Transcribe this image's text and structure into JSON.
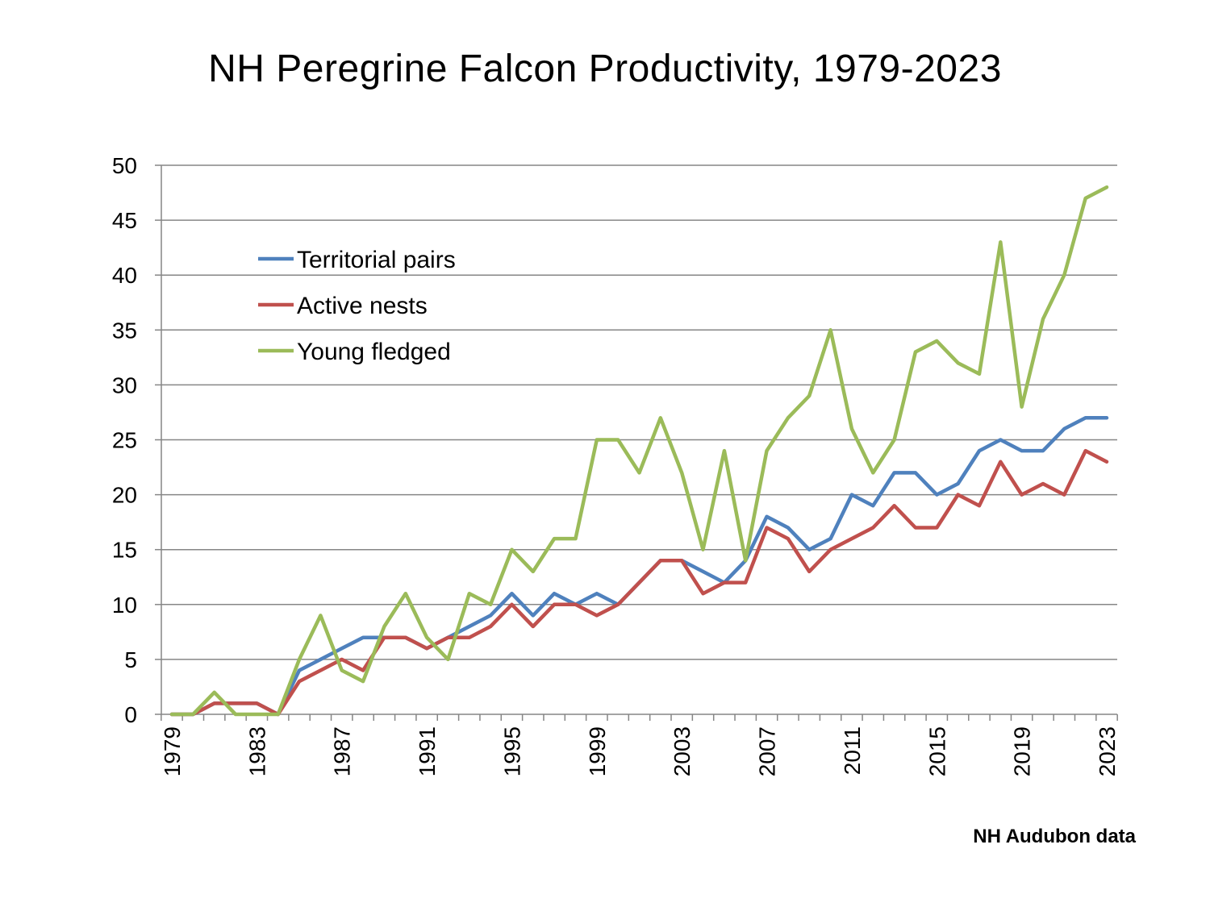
{
  "chart_data": {
    "type": "line",
    "title": "NH Peregrine Falcon Productivity, 1979-2023",
    "source_note": "NH Audubon data",
    "xlabel": "",
    "ylabel": "",
    "ylim": [
      0,
      50
    ],
    "yticks": [
      0,
      5,
      10,
      15,
      20,
      25,
      30,
      35,
      40,
      45,
      50
    ],
    "xtick_labels": [
      "1979",
      "1983",
      "1987",
      "1991",
      "1995",
      "1999",
      "2003",
      "2007",
      "2011",
      "2015",
      "2019",
      "2023"
    ],
    "grid": true,
    "legend_position": "upper-left",
    "x": [
      1979,
      1980,
      1981,
      1982,
      1983,
      1984,
      1985,
      1986,
      1987,
      1988,
      1989,
      1990,
      1991,
      1992,
      1993,
      1994,
      1995,
      1996,
      1997,
      1998,
      1999,
      2000,
      2001,
      2002,
      2003,
      2004,
      2005,
      2006,
      2007,
      2008,
      2009,
      2010,
      2011,
      2012,
      2013,
      2014,
      2015,
      2016,
      2017,
      2018,
      2019,
      2020,
      2021,
      2022,
      2023
    ],
    "series": [
      {
        "name": "Territorial pairs",
        "color": "#4F81BD",
        "values": [
          0,
          0,
          1,
          1,
          1,
          0,
          4,
          5,
          6,
          7,
          7,
          7,
          6,
          7,
          8,
          9,
          11,
          9,
          11,
          10,
          11,
          10,
          12,
          14,
          14,
          13,
          12,
          14,
          18,
          17,
          15,
          16,
          20,
          19,
          22,
          22,
          20,
          21,
          24,
          25,
          24,
          24,
          26,
          27,
          27
        ]
      },
      {
        "name": "Active nests",
        "color": "#C0504D",
        "values": [
          0,
          0,
          1,
          1,
          1,
          0,
          3,
          4,
          5,
          4,
          7,
          7,
          6,
          7,
          7,
          8,
          10,
          8,
          10,
          10,
          9,
          10,
          12,
          14,
          14,
          11,
          12,
          12,
          17,
          16,
          13,
          15,
          16,
          17,
          19,
          17,
          17,
          20,
          19,
          23,
          20,
          21,
          20,
          24,
          23
        ]
      },
      {
        "name": "Young fledged",
        "color": "#9BBB59",
        "values": [
          0,
          0,
          2,
          0,
          0,
          0,
          5,
          9,
          4,
          3,
          8,
          11,
          7,
          5,
          11,
          10,
          15,
          13,
          16,
          16,
          25,
          25,
          22,
          27,
          22,
          15,
          24,
          14,
          24,
          27,
          29,
          35,
          26,
          22,
          25,
          33,
          34,
          32,
          31,
          43,
          28,
          36,
          40,
          47,
          48
        ]
      }
    ]
  }
}
